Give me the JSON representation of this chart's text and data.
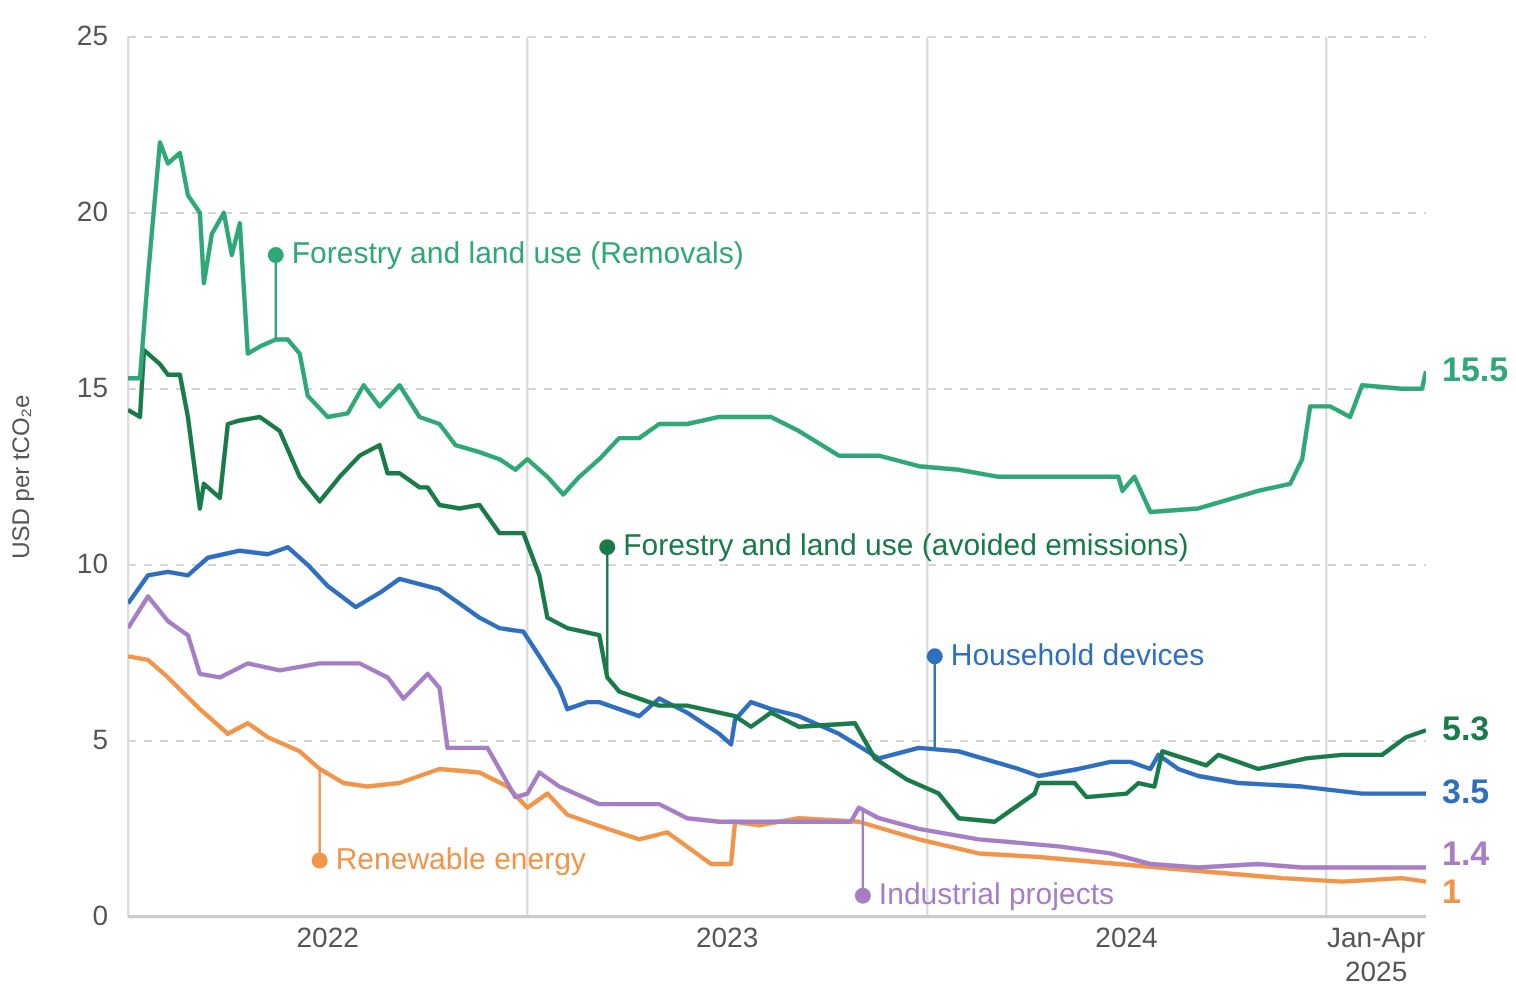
{
  "chart_data": {
    "type": "line",
    "ylabel": "USD per tCO₂e",
    "xlim": [
      2022,
      2025.25
    ],
    "ylim": [
      0,
      25
    ],
    "xticks": [
      {
        "value": 2022,
        "label": null
      },
      {
        "value": 2022.5,
        "label": "2022"
      },
      {
        "value": 2023,
        "label": null
      },
      {
        "value": 2023.5,
        "label": "2023"
      },
      {
        "value": 2024,
        "label": null
      },
      {
        "value": 2024.5,
        "label": "2024"
      },
      {
        "value": 2025,
        "label": null
      },
      {
        "value": 2025.125,
        "label": "Jan-Apr\n2025"
      }
    ],
    "yticks": [
      0,
      5,
      10,
      15,
      20,
      25
    ],
    "grid": true,
    "legend": false,
    "series": [
      {
        "color": "#2fa877",
        "x": [
          2022,
          2022.03,
          2022.05,
          2022.08,
          2022.1,
          2022.13,
          2022.15,
          2022.18,
          2022.19,
          2022.21,
          2022.24,
          2022.26,
          2022.28,
          2022.3,
          2022.33,
          2022.37,
          2022.4,
          2022.43,
          2022.45,
          2022.5,
          2022.55,
          2022.59,
          2022.63,
          2022.68,
          2022.73,
          2022.78,
          2022.82,
          2022.88,
          2022.93,
          2022.97,
          2023,
          2023.05,
          2023.09,
          2023.13,
          2023.18,
          2023.23,
          2023.28,
          2023.33,
          2023.4,
          2023.48,
          2023.61,
          2023.68,
          2023.78,
          2023.88,
          2023.98,
          2024.08,
          2024.18,
          2024.33,
          2024.48,
          2024.49,
          2024.52,
          2024.56,
          2024.68,
          2024.83,
          2024.91,
          2024.94,
          2024.96,
          2025.01,
          2025.06,
          2025.09,
          2025.19,
          2025.24,
          2025.25
        ],
        "values": [
          15.3,
          15.3,
          18.2,
          22,
          21.4,
          21.7,
          20.5,
          20,
          18,
          19.4,
          20,
          18.8,
          19.7,
          16,
          16.2,
          16.4,
          16.4,
          16,
          14.8,
          14.2,
          14.3,
          15.1,
          14.5,
          15.1,
          14.2,
          14,
          13.4,
          13.2,
          13,
          12.7,
          13,
          12.5,
          12,
          12.5,
          13,
          13.6,
          13.6,
          14,
          14,
          14.2,
          14.2,
          13.8,
          13.1,
          13.1,
          12.8,
          12.7,
          12.5,
          12.5,
          12.5,
          12.1,
          12.5,
          11.5,
          11.6,
          12.1,
          12.3,
          13,
          14.5,
          14.5,
          14.2,
          15.1,
          15,
          15,
          15.5
        ],
        "value_labels": [
          null,
          null,
          null,
          null,
          null,
          null,
          null,
          null,
          null,
          null,
          null,
          null,
          null,
          null,
          null,
          null,
          null,
          null,
          null,
          null,
          null,
          null,
          null,
          null,
          null,
          null,
          null,
          null,
          null,
          null,
          null,
          null,
          null,
          null,
          null,
          null,
          null,
          null,
          null,
          null,
          null,
          null,
          null,
          null,
          null,
          null,
          null,
          null,
          null,
          null,
          null,
          null,
          null,
          null,
          null,
          null,
          null,
          null,
          null,
          null,
          null,
          null,
          "15.5"
        ]
      },
      {
        "color": "#197a4a",
        "x": [
          2022,
          2022.03,
          2022.04,
          2022.08,
          2022.1,
          2022.13,
          2022.15,
          2022.18,
          2022.19,
          2022.23,
          2022.25,
          2022.28,
          2022.33,
          2022.38,
          2022.43,
          2022.48,
          2022.53,
          2022.58,
          2022.63,
          2022.65,
          2022.68,
          2022.73,
          2022.75,
          2022.78,
          2022.83,
          2022.88,
          2022.93,
          2022.99,
          2023.03,
          2023.05,
          2023.1,
          2023.18,
          2023.2,
          2023.23,
          2023.28,
          2023.33,
          2023.4,
          2023.48,
          2023.52,
          2023.56,
          2023.61,
          2023.68,
          2023.82,
          2023.87,
          2023.95,
          2024.03,
          2024.08,
          2024.17,
          2024.27,
          2024.28,
          2024.37,
          2024.4,
          2024.5,
          2024.53,
          2024.57,
          2024.59,
          2024.7,
          2024.73,
          2024.83,
          2024.95,
          2025.04,
          2025.14,
          2025.2,
          2025.25
        ],
        "values": [
          14.4,
          14.2,
          16.1,
          15.7,
          15.4,
          15.4,
          14.2,
          11.6,
          12.3,
          11.9,
          14,
          14.1,
          14.2,
          13.8,
          12.5,
          11.8,
          12.5,
          13.1,
          13.4,
          12.6,
          12.6,
          12.2,
          12.2,
          11.7,
          11.6,
          11.7,
          10.9,
          10.9,
          9.7,
          8.5,
          8.2,
          8,
          6.8,
          6.4,
          6.2,
          6,
          6,
          5.8,
          5.7,
          5.4,
          5.8,
          5.4,
          5.5,
          4.5,
          3.9,
          3.5,
          2.8,
          2.7,
          3.5,
          3.8,
          3.8,
          3.4,
          3.5,
          3.8,
          3.7,
          4.7,
          4.3,
          4.6,
          4.2,
          4.5,
          4.6,
          4.6,
          5.1,
          5.3
        ],
        "value_labels": [
          null,
          null,
          null,
          null,
          null,
          null,
          null,
          null,
          null,
          null,
          null,
          null,
          null,
          null,
          null,
          null,
          null,
          null,
          null,
          null,
          null,
          null,
          null,
          null,
          null,
          null,
          null,
          null,
          null,
          null,
          null,
          null,
          null,
          null,
          null,
          null,
          null,
          null,
          null,
          null,
          null,
          null,
          null,
          null,
          null,
          null,
          null,
          null,
          null,
          null,
          null,
          null,
          null,
          null,
          null,
          null,
          null,
          null,
          null,
          null,
          null,
          null,
          null,
          "5.3"
        ]
      },
      {
        "color": "#2f6fc0",
        "x": [
          2022,
          2022.05,
          2022.1,
          2022.15,
          2022.2,
          2022.28,
          2022.35,
          2022.4,
          2022.45,
          2022.5,
          2022.57,
          2022.63,
          2022.68,
          2022.78,
          2022.83,
          2022.88,
          2022.93,
          2022.99,
          2023.03,
          2023.08,
          2023.1,
          2023.15,
          2023.18,
          2023.23,
          2023.28,
          2023.33,
          2023.4,
          2023.48,
          2023.51,
          2023.52,
          2023.56,
          2023.61,
          2023.68,
          2023.78,
          2023.88,
          2023.98,
          2024.08,
          2024.23,
          2024.28,
          2024.38,
          2024.46,
          2024.51,
          2024.56,
          2024.58,
          2024.63,
          2024.68,
          2024.78,
          2024.94,
          2025.09,
          2025.19,
          2025.25
        ],
        "values": [
          8.9,
          9.7,
          9.8,
          9.7,
          10.2,
          10.4,
          10.3,
          10.5,
          10,
          9.4,
          8.8,
          9.2,
          9.6,
          9.3,
          8.9,
          8.5,
          8.2,
          8.1,
          7.4,
          6.5,
          5.9,
          6.1,
          6.1,
          5.9,
          5.7,
          6.2,
          5.8,
          5.2,
          4.9,
          5.6,
          6.1,
          5.9,
          5.7,
          5.2,
          4.5,
          4.8,
          4.7,
          4.2,
          4,
          4.2,
          4.4,
          4.4,
          4.2,
          4.6,
          4.2,
          4,
          3.8,
          3.7,
          3.5,
          3.5,
          3.5
        ],
        "value_labels": [
          null,
          null,
          null,
          null,
          null,
          null,
          null,
          null,
          null,
          null,
          null,
          null,
          null,
          null,
          null,
          null,
          null,
          null,
          null,
          null,
          null,
          null,
          null,
          null,
          null,
          null,
          null,
          null,
          null,
          null,
          null,
          null,
          null,
          null,
          null,
          null,
          null,
          null,
          null,
          null,
          null,
          null,
          null,
          null,
          null,
          null,
          null,
          null,
          null,
          null,
          "3.5"
        ]
      },
      {
        "color": "#a67ec6",
        "x": [
          2022,
          2022.05,
          2022.1,
          2022.15,
          2022.18,
          2022.23,
          2022.3,
          2022.38,
          2022.48,
          2022.58,
          2022.65,
          2022.69,
          2022.75,
          2022.78,
          2022.8,
          2022.9,
          2022.93,
          2022.97,
          2023,
          2023.03,
          2023.08,
          2023.18,
          2023.33,
          2023.4,
          2023.48,
          2023.56,
          2023.66,
          2023.81,
          2023.83,
          2023.88,
          2023.98,
          2024.13,
          2024.33,
          2024.46,
          2024.56,
          2024.68,
          2024.83,
          2024.94,
          2025.09,
          2025.25
        ],
        "values": [
          8.2,
          9.1,
          8.4,
          8,
          6.9,
          6.8,
          7.2,
          7,
          7.2,
          7.2,
          6.8,
          6.2,
          6.9,
          6.5,
          4.8,
          4.8,
          4.2,
          3.4,
          3.5,
          4.1,
          3.7,
          3.2,
          3.2,
          2.8,
          2.7,
          2.7,
          2.7,
          2.7,
          3.1,
          2.8,
          2.5,
          2.2,
          2,
          1.8,
          1.5,
          1.4,
          1.5,
          1.4,
          1.4,
          1.4
        ],
        "value_labels": [
          null,
          null,
          null,
          null,
          null,
          null,
          null,
          null,
          null,
          null,
          null,
          null,
          null,
          null,
          null,
          null,
          null,
          null,
          null,
          null,
          null,
          null,
          null,
          null,
          null,
          null,
          null,
          null,
          null,
          null,
          null,
          null,
          null,
          null,
          null,
          null,
          null,
          null,
          null,
          "1.4"
        ]
      },
      {
        "color": "#f0954a",
        "x": [
          2022,
          2022.05,
          2022.1,
          2022.18,
          2022.25,
          2022.3,
          2022.35,
          2022.43,
          2022.48,
          2022.54,
          2022.6,
          2022.68,
          2022.78,
          2022.88,
          2022.95,
          2023,
          2023.05,
          2023.1,
          2023.2,
          2023.28,
          2023.35,
          2023.46,
          2023.51,
          2023.52,
          2023.58,
          2023.68,
          2023.83,
          2023.98,
          2024.13,
          2024.28,
          2024.48,
          2024.68,
          2024.89,
          2025.04,
          2025.19,
          2025.25
        ],
        "values": [
          7.4,
          7.3,
          6.8,
          5.9,
          5.2,
          5.5,
          5.1,
          4.7,
          4.2,
          3.8,
          3.7,
          3.8,
          4.2,
          4.1,
          3.7,
          3.1,
          3.5,
          2.9,
          2.5,
          2.2,
          2.4,
          1.5,
          1.5,
          2.7,
          2.6,
          2.8,
          2.7,
          2.2,
          1.8,
          1.7,
          1.5,
          1.3,
          1.1,
          1,
          1.1,
          1
        ],
        "value_labels": [
          null,
          null,
          null,
          null,
          null,
          null,
          null,
          null,
          null,
          null,
          null,
          null,
          null,
          null,
          null,
          null,
          null,
          null,
          null,
          null,
          null,
          null,
          null,
          null,
          null,
          null,
          null,
          null,
          null,
          null,
          null,
          null,
          null,
          null,
          null,
          "1"
        ]
      }
    ],
    "annotations": [
      {
        "text": "Forestry and land use (Removals)",
        "x": 2022.37,
        "y": 18.8
      },
      {
        "text": "Forestry and land use (avoided emissions)",
        "x": 2023.2,
        "y": 10.5
      },
      {
        "text": "Household devices",
        "x": 2024.02,
        "y": 7.4
      },
      {
        "text": "Industrial projects",
        "x": 2023.84,
        "y": 0.6
      },
      {
        "text": "Renewable energy",
        "x": 2022.48,
        "y": 1.6
      }
    ]
  }
}
